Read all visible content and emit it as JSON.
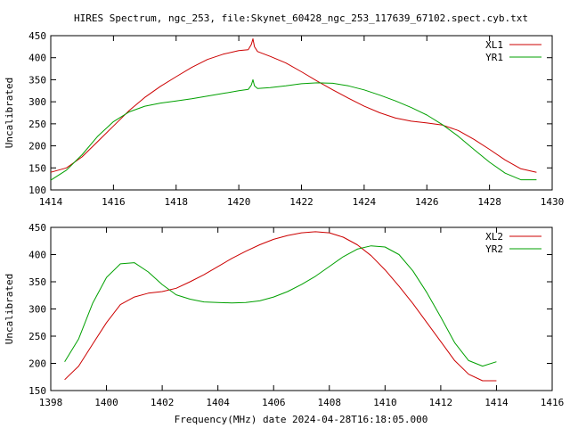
{
  "title": "HIRES Spectrum, ngc_253, file:Skynet_60428_ngc_253_117639_67102.spect.cyb.txt",
  "xlabel": "Frequency(MHz) date 2024-04-28T16:18:05.000",
  "chart_data": [
    {
      "type": "line",
      "ylabel": "Uncalibrated",
      "xlim": [
        1414,
        1430
      ],
      "ylim": [
        100,
        450
      ],
      "xticks": [
        "1414",
        "1416",
        "1418",
        "1420",
        "1422",
        "1424",
        "1426",
        "1428",
        "1430"
      ],
      "yticks": [
        "100",
        "150",
        "200",
        "250",
        "300",
        "350",
        "400",
        "450"
      ],
      "legend": "top-right",
      "series": [
        {
          "name": "XL1",
          "color": "#cc0000",
          "x": [
            1414.0,
            1414.5,
            1415.0,
            1415.5,
            1416.0,
            1416.5,
            1417.0,
            1417.5,
            1418.0,
            1418.5,
            1419.0,
            1419.5,
            1420.0,
            1420.3,
            1420.4,
            1420.45,
            1420.5,
            1420.6,
            1421.0,
            1421.5,
            1422.0,
            1422.5,
            1423.0,
            1423.5,
            1424.0,
            1424.5,
            1425.0,
            1425.5,
            1426.0,
            1426.5,
            1427.0,
            1427.5,
            1428.0,
            1428.5,
            1429.0,
            1429.5
          ],
          "y": [
            140,
            150,
            175,
            210,
            245,
            280,
            310,
            335,
            357,
            378,
            396,
            408,
            416,
            418,
            430,
            443,
            425,
            414,
            403,
            388,
            368,
            347,
            327,
            308,
            290,
            275,
            263,
            256,
            252,
            247,
            235,
            215,
            192,
            168,
            148,
            140
          ]
        },
        {
          "name": "YR1",
          "color": "#00a000",
          "x": [
            1414.0,
            1414.5,
            1415.0,
            1415.5,
            1416.0,
            1416.5,
            1417.0,
            1417.5,
            1418.0,
            1418.5,
            1419.0,
            1419.5,
            1420.0,
            1420.3,
            1420.4,
            1420.45,
            1420.5,
            1420.6,
            1421.0,
            1421.5,
            1422.0,
            1422.5,
            1423.0,
            1423.5,
            1424.0,
            1424.5,
            1425.0,
            1425.5,
            1426.0,
            1426.5,
            1427.0,
            1427.5,
            1428.0,
            1428.5,
            1429.0,
            1429.5
          ],
          "y": [
            122,
            145,
            180,
            222,
            255,
            277,
            290,
            297,
            302,
            307,
            313,
            319,
            325,
            328,
            338,
            350,
            336,
            330,
            332,
            336,
            341,
            343,
            342,
            336,
            327,
            315,
            302,
            287,
            270,
            248,
            222,
            192,
            163,
            138,
            123,
            123
          ]
        }
      ]
    },
    {
      "type": "line",
      "ylabel": "Uncalibrated",
      "xlim": [
        1398,
        1416
      ],
      "ylim": [
        150,
        450
      ],
      "xticks": [
        "1398",
        "1400",
        "1402",
        "1404",
        "1406",
        "1408",
        "1410",
        "1412",
        "1414",
        "1416"
      ],
      "yticks": [
        "150",
        "200",
        "250",
        "300",
        "350",
        "400",
        "450"
      ],
      "legend": "top-right",
      "series": [
        {
          "name": "XL2",
          "color": "#cc0000",
          "x": [
            1398.5,
            1399.0,
            1399.5,
            1400.0,
            1400.5,
            1401.0,
            1401.5,
            1402.0,
            1402.5,
            1403.0,
            1403.5,
            1404.0,
            1404.5,
            1405.0,
            1405.5,
            1406.0,
            1406.5,
            1407.0,
            1407.5,
            1408.0,
            1408.5,
            1409.0,
            1409.5,
            1410.0,
            1410.5,
            1411.0,
            1411.5,
            1412.0,
            1412.5,
            1413.0,
            1413.5,
            1414.0
          ],
          "y": [
            170,
            195,
            235,
            275,
            308,
            322,
            329,
            332,
            338,
            350,
            363,
            378,
            393,
            406,
            418,
            428,
            435,
            440,
            442,
            440,
            432,
            418,
            398,
            372,
            342,
            310,
            275,
            240,
            205,
            180,
            168,
            168
          ]
        },
        {
          "name": "YR2",
          "color": "#00a000",
          "x": [
            1398.5,
            1399.0,
            1399.5,
            1400.0,
            1400.5,
            1401.0,
            1401.5,
            1402.0,
            1402.5,
            1403.0,
            1403.5,
            1404.0,
            1404.5,
            1405.0,
            1405.5,
            1406.0,
            1406.5,
            1407.0,
            1407.5,
            1408.0,
            1408.5,
            1409.0,
            1409.5,
            1410.0,
            1410.5,
            1411.0,
            1411.5,
            1412.0,
            1412.5,
            1413.0,
            1413.5,
            1414.0
          ],
          "y": [
            203,
            245,
            310,
            358,
            383,
            385,
            368,
            345,
            326,
            318,
            313,
            312,
            311,
            312,
            315,
            322,
            332,
            345,
            360,
            378,
            396,
            410,
            416,
            414,
            400,
            370,
            330,
            285,
            238,
            205,
            195,
            203
          ]
        }
      ]
    }
  ]
}
